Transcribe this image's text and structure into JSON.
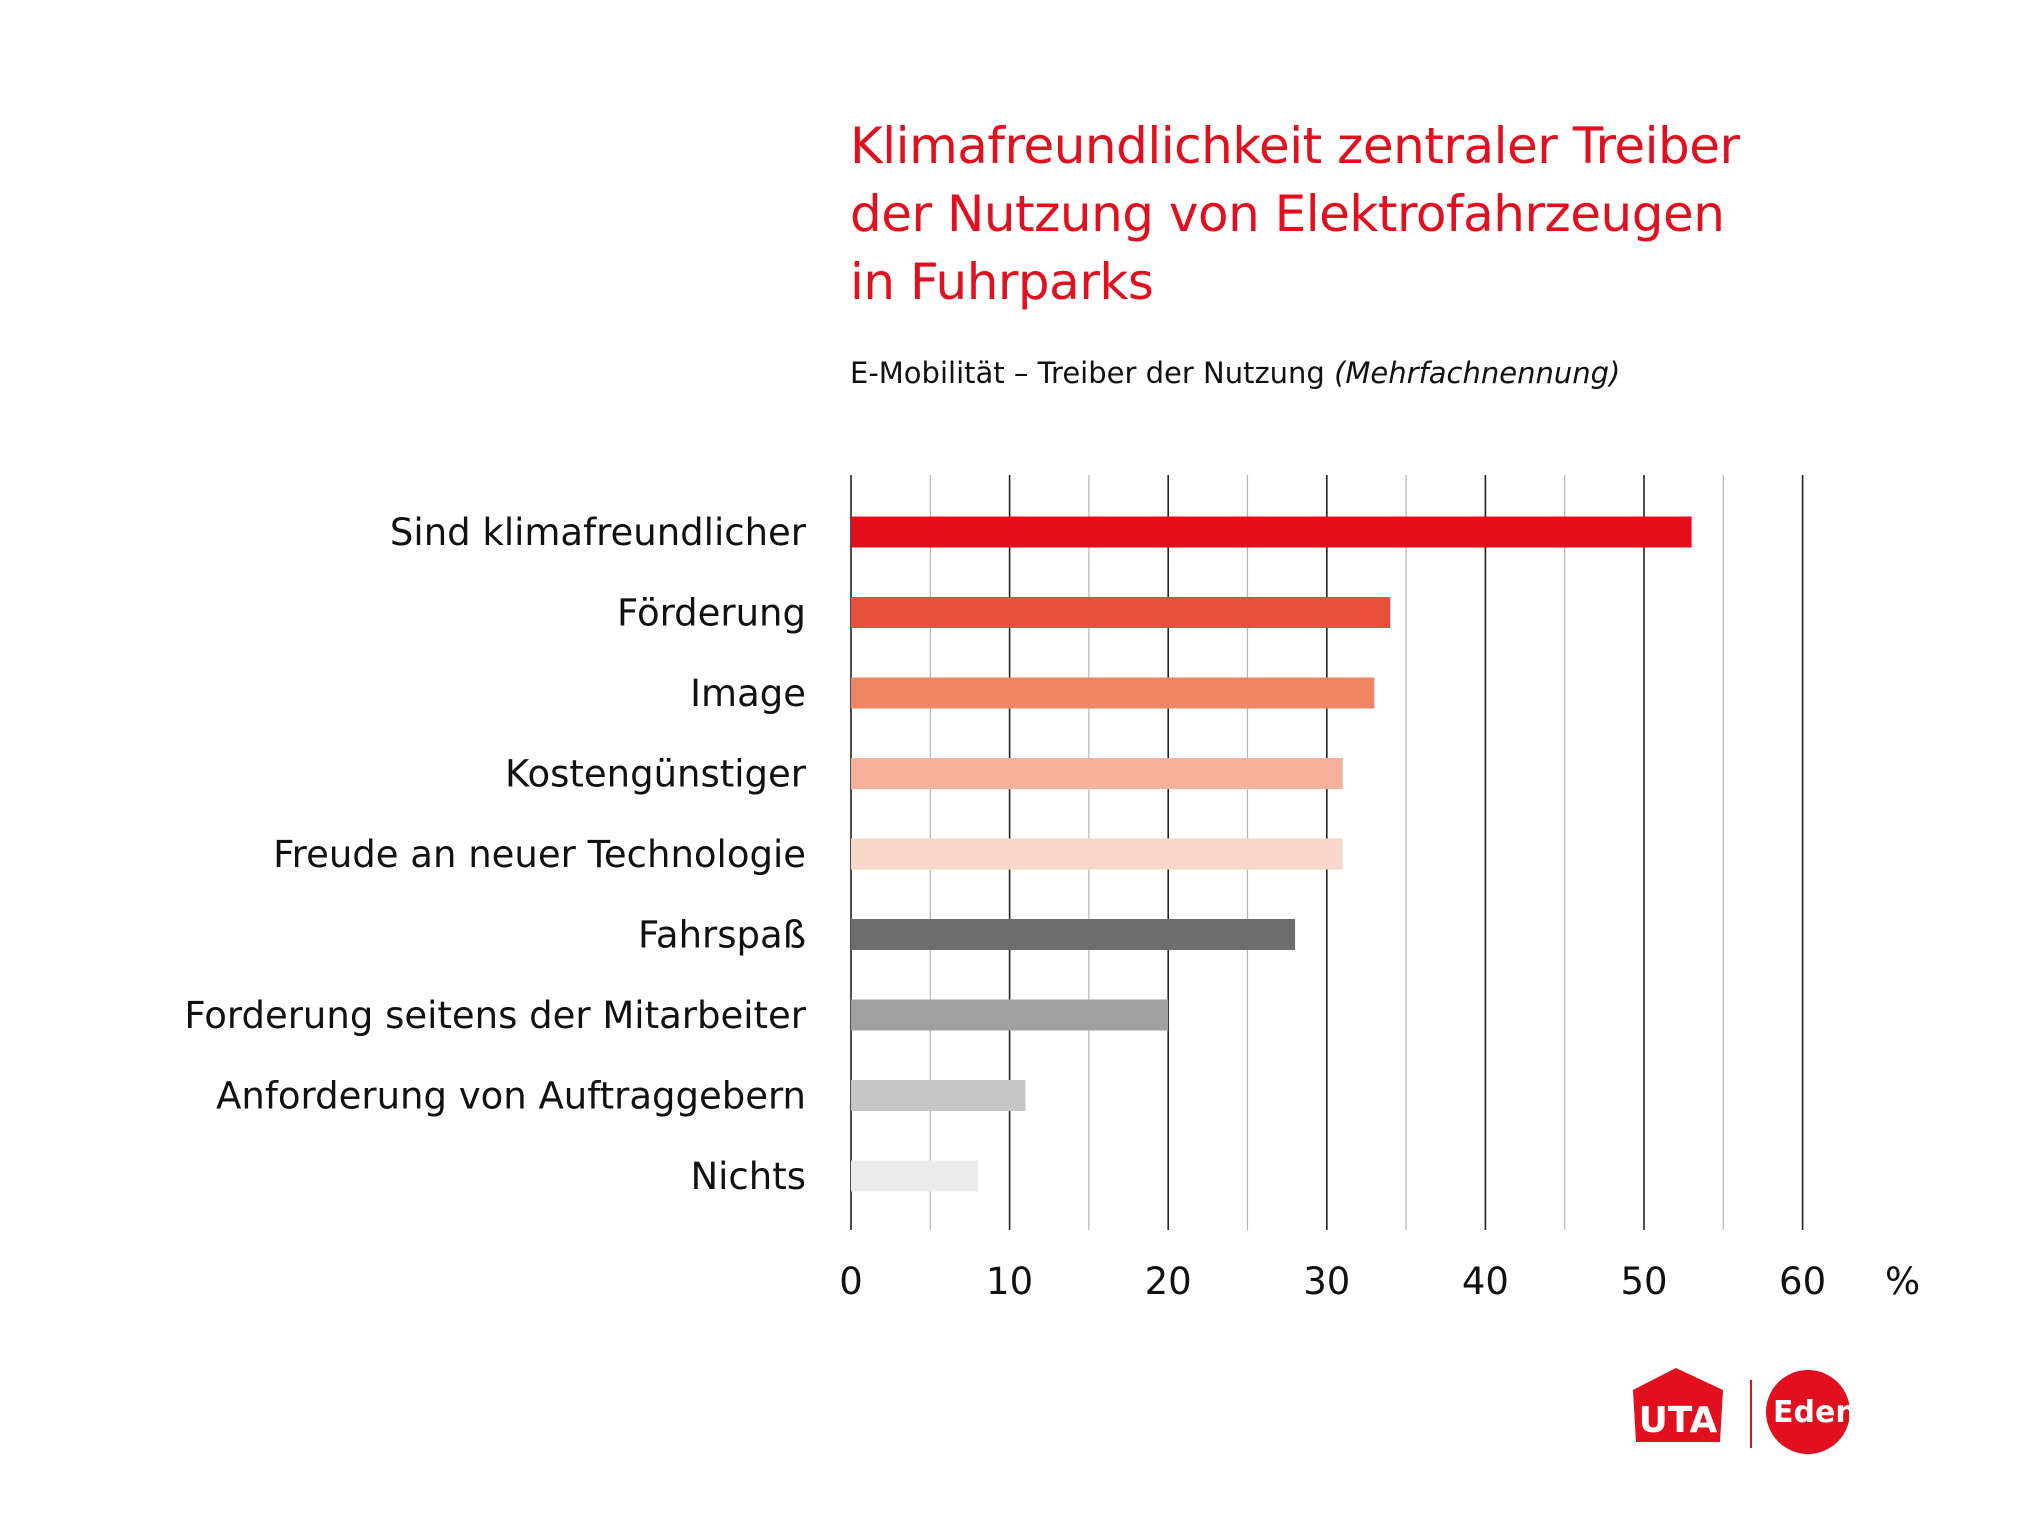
{
  "title_lines": [
    "Klimafreundlichkeit zentraler Treiber",
    "der Nutzung von Elektrofahrzeugen",
    "in Fuhrparks"
  ],
  "subtitle_main": "E-Mobilität – Treiber der Nutzung",
  "subtitle_note": "(Mehrfachnennung)",
  "logos": {
    "uta": "UTA",
    "edenred": "Edenred"
  },
  "chart_data": {
    "type": "bar",
    "orientation": "horizontal",
    "categories": [
      "Sind klimafreundlicher",
      "Förderung",
      "Image",
      "Kostengünstiger",
      "Freude an neuer Technologie",
      "Fahrspaß",
      "Forderung seitens der Mitarbeiter",
      "Anforderung von Auftraggebern",
      "Nichts"
    ],
    "values": [
      53,
      34,
      33,
      31,
      31,
      28,
      20,
      11,
      8
    ],
    "colors": [
      "#e30d1b",
      "#e84f3c",
      "#f08564",
      "#f5b19b",
      "#f9d6ca",
      "#6d6d6d",
      "#a0a0a0",
      "#c6c6c6",
      "#ebebeb"
    ],
    "xlim": [
      0,
      60
    ],
    "xticks": [
      0,
      10,
      20,
      30,
      40,
      50,
      60
    ],
    "unit": "%",
    "grid": true
  }
}
